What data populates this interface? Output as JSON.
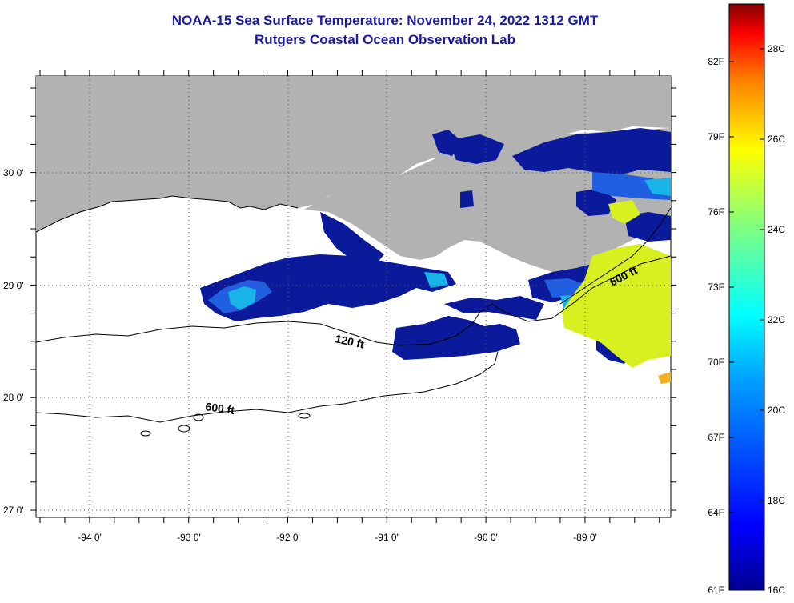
{
  "title": "NOAA-15 Sea Surface Temperature:  November 24, 2022 1312 GMT",
  "subtitle": "Rutgers Coastal Ocean Observation Lab",
  "map": {
    "latitude_labels": [
      "30 0'",
      "29 0'",
      "28 0'",
      "27 0'"
    ],
    "longitude_labels": [
      "-94 0'",
      "-93 0'",
      "-92 0'",
      "-91 0'",
      "-90 0'",
      "-89 0'"
    ],
    "depth_contours": [
      "120 ft",
      "600 ft",
      "600 ft"
    ]
  },
  "colorbar": {
    "fahrenheit_labels": [
      "82F",
      "79F",
      "76F",
      "73F",
      "70F",
      "67F",
      "64F",
      "61F"
    ],
    "celsius_labels": [
      "28C",
      "26C",
      "24C",
      "22C",
      "20C",
      "18C",
      "16C"
    ]
  },
  "colors": {
    "title": "#1a1aa6",
    "land": "#b2b2b2",
    "deep_blue": "#0b1a9a",
    "mid_blue": "#1f5fe0",
    "cyan": "#18b4e8",
    "yellow_green": "#d8f020"
  }
}
